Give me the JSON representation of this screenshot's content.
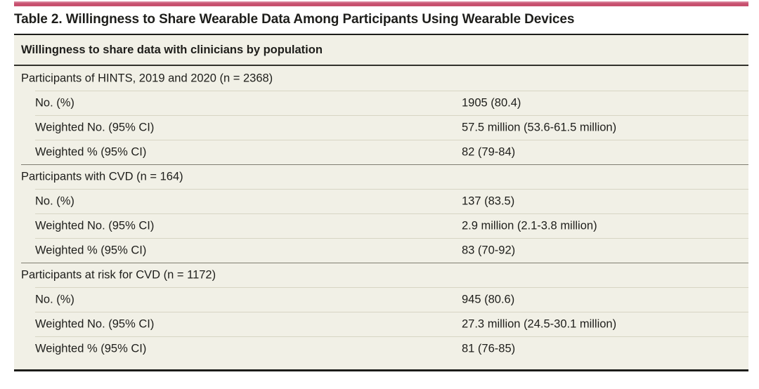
{
  "title": "Table 2. Willingness to Share Wearable Data Among Participants Using Wearable Devices",
  "table": {
    "header": "Willingness to share data with clinicians by population",
    "sections": [
      {
        "label": "Participants of HINTS, 2019 and 2020 (n = 2368)",
        "rows": [
          {
            "label": "No. (%)",
            "value": "1905 (80.4)"
          },
          {
            "label": "Weighted No. (95% CI)",
            "value": "57.5 million (53.6-61.5 million)"
          },
          {
            "label": "Weighted % (95% CI)",
            "value": "82 (79-84)"
          }
        ]
      },
      {
        "label": "Participants with CVD (n = 164)",
        "rows": [
          {
            "label": "No. (%)",
            "value": "137 (83.5)"
          },
          {
            "label": "Weighted No. (95% CI)",
            "value": "2.9 million (2.1-3.8 million)"
          },
          {
            "label": "Weighted % (95% CI)",
            "value": "83 (70-92)"
          }
        ]
      },
      {
        "label": "Participants at risk for CVD (n = 1172)",
        "rows": [
          {
            "label": "No. (%)",
            "value": "945 (80.6)"
          },
          {
            "label": "Weighted No. (95% CI)",
            "value": "27.3 million (24.5-30.1 million)"
          },
          {
            "label": "Weighted % (95% CI)",
            "value": "81 (76-85)"
          }
        ]
      }
    ]
  },
  "colors": {
    "accent_bar": "#c74f6e",
    "table_background": "#f1f0e6",
    "text": "#1e1e1b"
  }
}
